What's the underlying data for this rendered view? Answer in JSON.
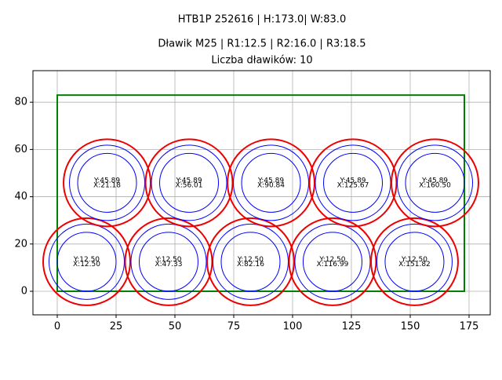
{
  "chart_data": {
    "type": "gland-layout",
    "title": "HTB1P 252616 | H:173.0| W:83.0",
    "subtitle": "Dławik M25 | R1:12.5 | R2:16.0 | R3:18.5",
    "count_label": "Liczba dławików: 10",
    "rect": {
      "width": 173,
      "height": 83,
      "color": "#008000"
    },
    "radii": [
      12.5,
      16.0,
      18.5
    ],
    "radius_colors": [
      "#0000ff",
      "#0000ff",
      "#ee0000"
    ],
    "points": [
      {
        "x": 12.5,
        "y": 12.5,
        "x_label": "X:12.50",
        "y_label": "Y:12.50"
      },
      {
        "x": 47.33,
        "y": 12.5,
        "x_label": "X:47.33",
        "y_label": "Y:12.50"
      },
      {
        "x": 82.16,
        "y": 12.5,
        "x_label": "X:82.16",
        "y_label": "Y:12.50"
      },
      {
        "x": 116.99,
        "y": 12.5,
        "x_label": "X:116.99",
        "y_label": "Y:12.50"
      },
      {
        "x": 151.82,
        "y": 12.5,
        "x_label": "X:151.82",
        "y_label": "Y:12.50"
      },
      {
        "x": 21.18,
        "y": 45.89,
        "x_label": "X:21.18",
        "y_label": "Y:45.89"
      },
      {
        "x": 56.01,
        "y": 45.89,
        "x_label": "X:56.01",
        "y_label": "Y:45.89"
      },
      {
        "x": 90.84,
        "y": 45.89,
        "x_label": "X:90.84",
        "y_label": "Y:45.89"
      },
      {
        "x": 125.67,
        "y": 45.89,
        "x_label": "X:125.67",
        "y_label": "Y:45.89"
      },
      {
        "x": 160.5,
        "y": 45.89,
        "x_label": "X:160.50",
        "y_label": "Y:45.89"
      }
    ],
    "xlim": [
      -10.33,
      184
    ],
    "ylim": [
      -9.97,
      93.35
    ],
    "xticks": [
      0,
      25,
      50,
      75,
      100,
      125,
      150,
      175
    ],
    "yticks": [
      0,
      20,
      40,
      60,
      80
    ],
    "grid": true
  }
}
